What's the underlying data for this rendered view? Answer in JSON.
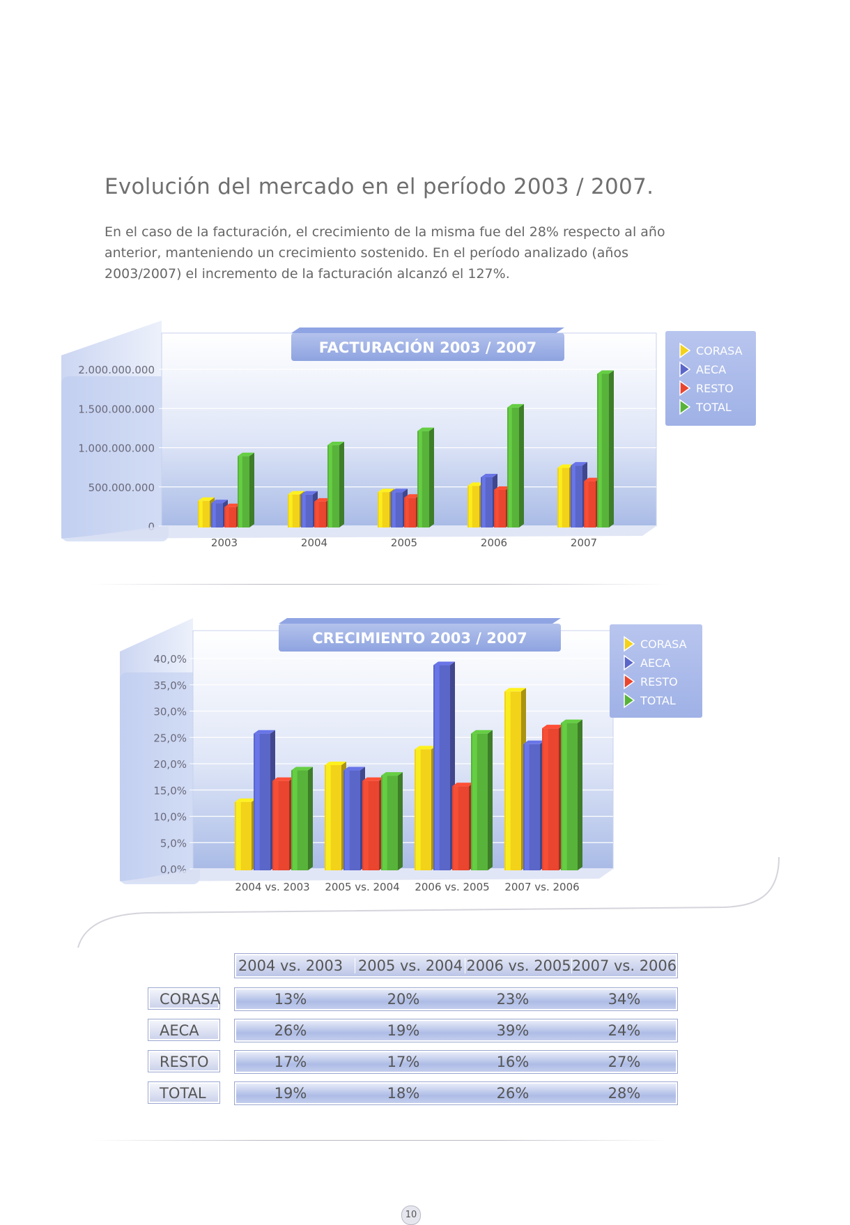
{
  "heading": "Evolución del mercado en el período 2003 / 2007.",
  "intro": "En el caso de la facturación, el crecimiento de la misma fue del 28% respecto al año anterior, manteniendo un crecimiento sostenido. En el período analizado (años 2003/2007) el incremento de la facturación alcanzó el 127%.",
  "page_number": "10",
  "colors": {
    "CORASA": "#f3d21a",
    "AECA": "#5b66c9",
    "RESTO": "#e9452f",
    "TOTAL": "#58b33a"
  },
  "chart_data": [
    {
      "type": "bar",
      "title": "FACTURACIÓN 2003 / 2007",
      "categories": [
        "2003",
        "2004",
        "2005",
        "2006",
        "2007"
      ],
      "series": [
        {
          "name": "CORASA",
          "values": [
            340000000,
            420000000,
            450000000,
            530000000,
            760000000
          ]
        },
        {
          "name": "AECA",
          "values": [
            310000000,
            420000000,
            450000000,
            640000000,
            790000000
          ]
        },
        {
          "name": "RESTO",
          "values": [
            260000000,
            330000000,
            380000000,
            480000000,
            590000000
          ]
        },
        {
          "name": "TOTAL",
          "values": [
            910000000,
            1050000000,
            1230000000,
            1530000000,
            1960000000
          ]
        }
      ],
      "yticks": [
        "2.000.000.000",
        "1.500.000.000",
        "1.000.000.000",
        "500.000.000",
        "0"
      ],
      "ylim": [
        0,
        2000000000
      ],
      "legend": [
        "CORASA",
        "AECA",
        "RESTO",
        "TOTAL"
      ]
    },
    {
      "type": "bar",
      "title": "CRECIMIENTO 2003 / 2007",
      "categories": [
        "2004 vs. 2003",
        "2005 vs. 2004",
        "2006 vs. 2005",
        "2007 vs. 2006"
      ],
      "series": [
        {
          "name": "CORASA",
          "values": [
            13,
            20,
            23,
            34
          ]
        },
        {
          "name": "AECA",
          "values": [
            26,
            19,
            39,
            24
          ]
        },
        {
          "name": "RESTO",
          "values": [
            17,
            17,
            16,
            27
          ]
        },
        {
          "name": "TOTAL",
          "values": [
            19,
            18,
            26,
            28
          ]
        }
      ],
      "yticks": [
        "40,0%",
        "35,0%",
        "30,0%",
        "25,0%",
        "20,0%",
        "15,0%",
        "10,0%",
        "5,0%",
        "0,0%"
      ],
      "ylim": [
        0,
        40
      ],
      "legend": [
        "CORASA",
        "AECA",
        "RESTO",
        "TOTAL"
      ]
    },
    {
      "type": "table",
      "columns": [
        "2004 vs. 2003",
        "2005 vs. 2004",
        "2006 vs. 2005",
        "2007 vs. 2006"
      ],
      "rows": [
        {
          "label": "CORASA",
          "values": [
            "13%",
            "20%",
            "23%",
            "34%"
          ]
        },
        {
          "label": "AECA",
          "values": [
            "26%",
            "19%",
            "39%",
            "24%"
          ]
        },
        {
          "label": "RESTO",
          "values": [
            "17%",
            "17%",
            "16%",
            "27%"
          ]
        },
        {
          "label": "TOTAL",
          "values": [
            "19%",
            "18%",
            "26%",
            "28%"
          ]
        }
      ]
    }
  ]
}
